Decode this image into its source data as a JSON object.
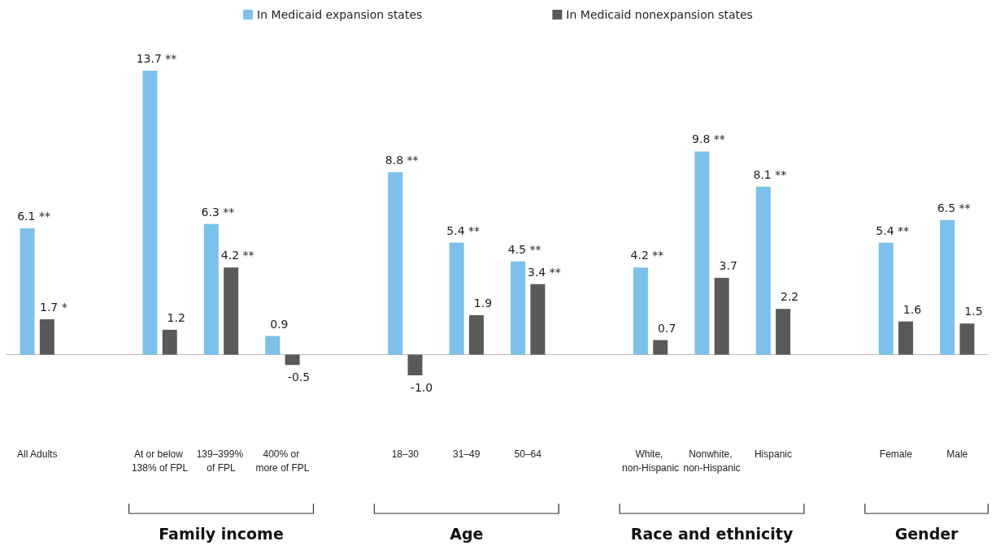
{
  "chart_data": {
    "type": "bar",
    "categories": [
      "All Adults",
      null,
      "At or below 138% of FPL",
      "139–399% of FPL",
      "400% or more of FPL",
      null,
      "18–30",
      "31–49",
      "50–64",
      null,
      "White, non-Hispanic",
      "Nonwhite, non-Hispanic",
      "Hispanic",
      null,
      "Female",
      "Male"
    ],
    "series": [
      {
        "name": "In Medicaid expansion states",
        "color": "#7cc1ea",
        "values": [
          6.1,
          null,
          13.7,
          6.3,
          0.9,
          null,
          8.8,
          5.4,
          4.5,
          null,
          4.2,
          9.8,
          8.1,
          null,
          5.4,
          6.5
        ],
        "value_labels": [
          "6.1 **",
          null,
          "13.7 **",
          "6.3 **",
          "0.9",
          null,
          "8.8 **",
          "5.4 **",
          "4.5 **",
          null,
          "4.2 **",
          "9.8 **",
          "8.1 **",
          null,
          "5.4 **",
          "6.5 **"
        ]
      },
      {
        "name": "In Medicaid nonexpansion states",
        "color": "#595959",
        "values": [
          1.7,
          null,
          1.2,
          4.2,
          -0.5,
          null,
          -1.0,
          1.9,
          3.4,
          null,
          0.7,
          3.7,
          2.2,
          null,
          1.6,
          1.5
        ],
        "value_labels": [
          "1.7 *",
          null,
          "1.2",
          "4.2 **",
          "-0.5",
          null,
          "-1.0",
          "1.9",
          "3.4 **",
          null,
          "0.7",
          "3.7",
          "2.2",
          null,
          "1.6",
          "1.5"
        ]
      }
    ],
    "annotations": [
      "Family income",
      "Age",
      "Race and ethnicity",
      "Gender"
    ],
    "legend": "top"
  }
}
